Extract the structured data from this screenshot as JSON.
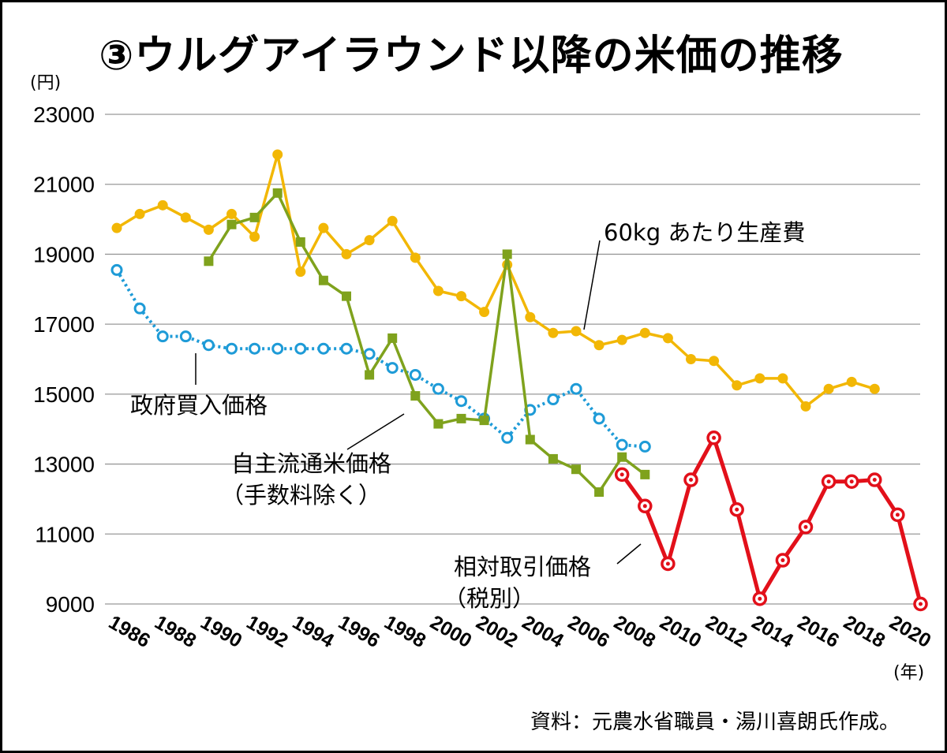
{
  "title": "③ウルグアイラウンド以降の米価の推移",
  "source": "資料：元農水省職員・湯川喜朗氏作成。",
  "colors": {
    "cost": "#F2B705",
    "gov": "#1E9BD7",
    "voluntary": "#7FA21D",
    "relative": "#E2101A",
    "grid": "#999999"
  },
  "chart_data": {
    "type": "line",
    "xlabel": "(年)",
    "ylabel": "(円)",
    "ylim": [
      9000,
      23000
    ],
    "yticks": [
      23000,
      21000,
      19000,
      17000,
      15000,
      13000,
      11000,
      9000
    ],
    "xlim": [
      1986,
      2021
    ],
    "xticks": [
      1986,
      1988,
      1990,
      1992,
      1994,
      1996,
      1998,
      2000,
      2002,
      2004,
      2006,
      2008,
      2010,
      2012,
      2014,
      2016,
      2018,
      2020
    ],
    "grid": true,
    "series": [
      {
        "key": "cost",
        "name": "60kg あたり生産費",
        "marker": "circle-filled",
        "x": [
          1986,
          1987,
          1988,
          1989,
          1990,
          1991,
          1992,
          1993,
          1994,
          1995,
          1996,
          1997,
          1998,
          1999,
          2000,
          2001,
          2002,
          2003,
          2004,
          2005,
          2006,
          2007,
          2008,
          2009,
          2010,
          2011,
          2012,
          2013,
          2014,
          2015,
          2016,
          2017,
          2018,
          2019
        ],
        "y": [
          19750,
          20150,
          20400,
          20050,
          19700,
          20150,
          19500,
          21850,
          18500,
          19750,
          19000,
          19400,
          19950,
          18900,
          17950,
          17800,
          17350,
          18700,
          17200,
          16750,
          16800,
          16400,
          16550,
          16750,
          16600,
          16000,
          15950,
          15250,
          15450,
          15450,
          14650,
          15150,
          15350,
          15150
        ]
      },
      {
        "key": "gov",
        "name": "政府買入価格",
        "marker": "circle-open",
        "dashed": true,
        "x": [
          1986,
          1987,
          1988,
          1989,
          1990,
          1991,
          1992,
          1993,
          1994,
          1995,
          1996,
          1997,
          1998,
          1999,
          2000,
          2001,
          2002,
          2003,
          2004,
          2005,
          2006,
          2007,
          2008,
          2009
        ],
        "y": [
          18550,
          17450,
          16650,
          16650,
          16400,
          16300,
          16300,
          16300,
          16300,
          16300,
          16300,
          16150,
          15750,
          15550,
          15150,
          14800,
          14300,
          13750,
          14550,
          14850,
          15150,
          14300,
          13550,
          13500
        ]
      },
      {
        "key": "voluntary",
        "name": "自主流通米価格",
        "name_note": "（手数料除く）",
        "marker": "square",
        "x": [
          1990,
          1991,
          1992,
          1993,
          1994,
          1995,
          1996,
          1997,
          1998,
          1999,
          2000,
          2001,
          2002,
          2003,
          2004,
          2005,
          2006,
          2007,
          2008,
          2009
        ],
        "y": [
          18800,
          19850,
          20050,
          20750,
          19350,
          18250,
          17800,
          15550,
          16600,
          14950,
          14150,
          14300,
          14250,
          19000,
          13700,
          13150,
          12850,
          12200,
          13200,
          12700
        ]
      },
      {
        "key": "relative",
        "name": "相対取引価格",
        "name_note": "（税別）",
        "marker": "circle-open",
        "x": [
          2008,
          2009,
          2010,
          2011,
          2012,
          2013,
          2014,
          2015,
          2016,
          2017,
          2018,
          2019,
          2020,
          2021
        ],
        "y": [
          12700,
          11800,
          10150,
          12550,
          13750,
          11700,
          9150,
          10250,
          11200,
          12500,
          12500,
          12550,
          11550,
          9000
        ]
      }
    ]
  }
}
